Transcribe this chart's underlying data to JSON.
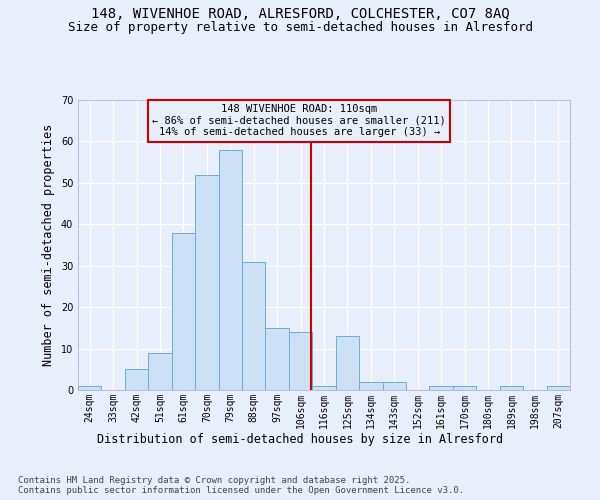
{
  "title1": "148, WIVENHOE ROAD, ALRESFORD, COLCHESTER, CO7 8AQ",
  "title2": "Size of property relative to semi-detached houses in Alresford",
  "xlabel": "Distribution of semi-detached houses by size in Alresford",
  "ylabel": "Number of semi-detached properties",
  "bin_labels": [
    "24sqm",
    "33sqm",
    "42sqm",
    "51sqm",
    "61sqm",
    "70sqm",
    "79sqm",
    "88sqm",
    "97sqm",
    "106sqm",
    "116sqm",
    "125sqm",
    "134sqm",
    "143sqm",
    "152sqm",
    "161sqm",
    "170sqm",
    "180sqm",
    "189sqm",
    "198sqm",
    "207sqm"
  ],
  "bar_heights": [
    1,
    0,
    5,
    9,
    38,
    52,
    58,
    31,
    15,
    14,
    1,
    13,
    2,
    2,
    0,
    1,
    1,
    0,
    1,
    0,
    1
  ],
  "bar_color": "#cce0f5",
  "bar_edge_color": "#6baed6",
  "vline_x": 9.44,
  "vline_color": "#cc0000",
  "annotation_text": "148 WIVENHOE ROAD: 110sqm\n← 86% of semi-detached houses are smaller (211)\n14% of semi-detached houses are larger (33) →",
  "annotation_box_edgecolor": "#cc0000",
  "ylim_max": 70,
  "yticks": [
    0,
    10,
    20,
    30,
    40,
    50,
    60,
    70
  ],
  "footer": "Contains HM Land Registry data © Crown copyright and database right 2025.\nContains public sector information licensed under the Open Government Licence v3.0.",
  "bg_color": "#e8eefa",
  "grid_color": "#ffffff",
  "title_fontsize": 10,
  "subtitle_fontsize": 9,
  "axis_label_fontsize": 8.5,
  "tick_fontsize": 7,
  "annotation_fontsize": 7.5,
  "footer_fontsize": 6.5
}
